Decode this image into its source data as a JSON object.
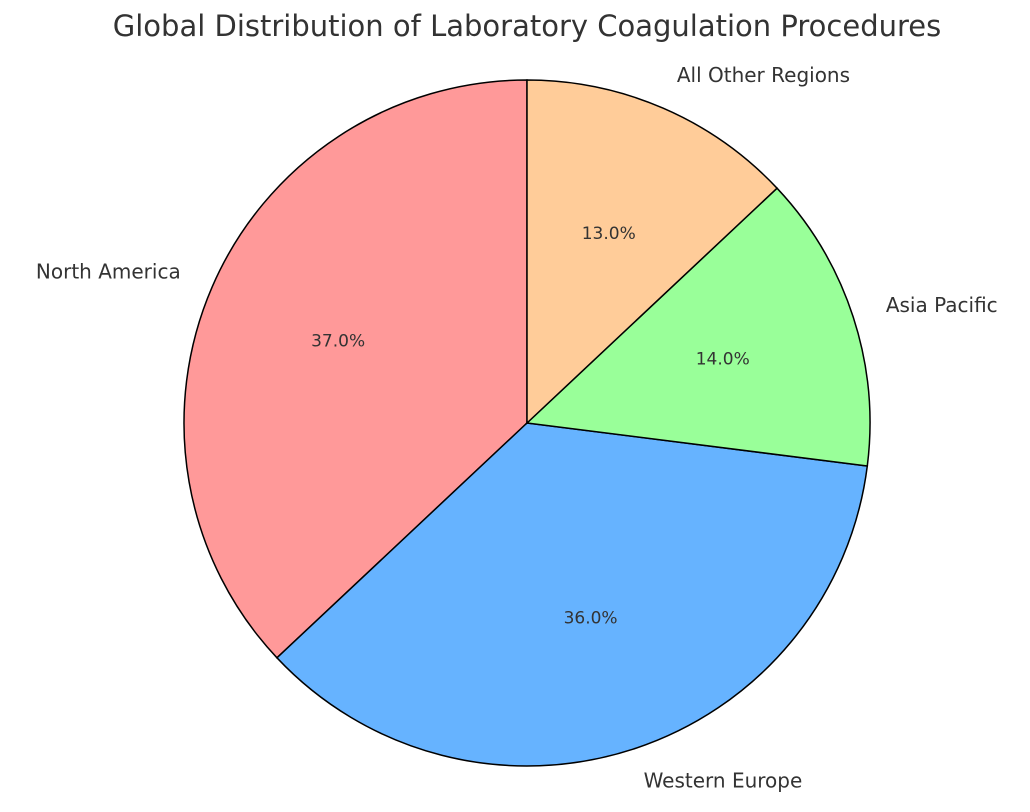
{
  "chart_data": {
    "type": "pie",
    "title": "Global Distribution of Laboratory Coagulation Procedures",
    "categories": [
      "North America",
      "Western Europe",
      "Asia Pacific",
      "All Other Regions"
    ],
    "values": [
      37,
      36,
      14,
      13
    ],
    "value_labels": [
      "37.0%",
      "36.0%",
      "14.0%",
      "13.0%"
    ],
    "colors": [
      "#ff9999",
      "#66b3ff",
      "#99ff99",
      "#ffcc99"
    ]
  }
}
